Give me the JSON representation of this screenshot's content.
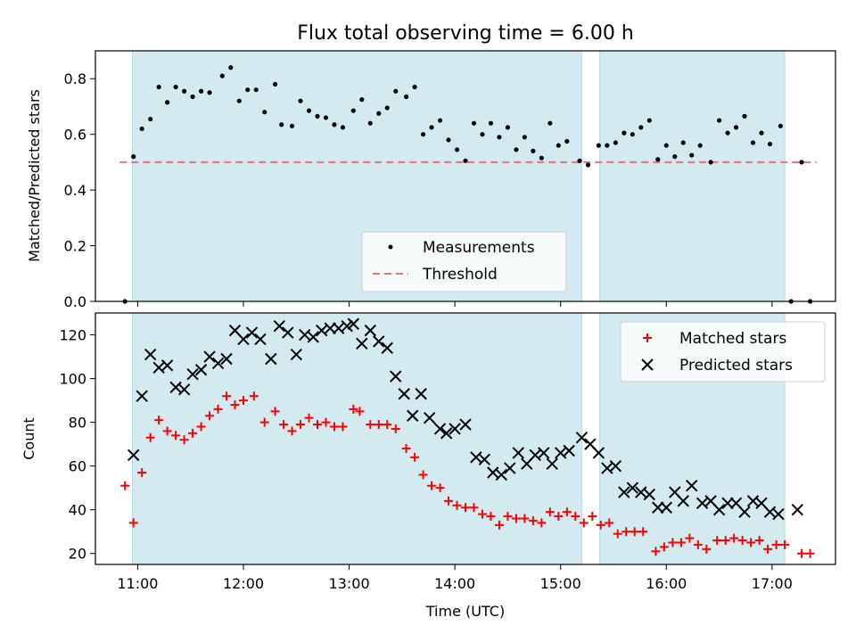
{
  "chart_data": {
    "title": "Flux total observing time = 6.00 h",
    "xlabel": "Time (UTC)",
    "x_ticks": [
      "11:00",
      "12:00",
      "13:00",
      "14:00",
      "15:00",
      "16:00",
      "17:00"
    ],
    "x_tick_hours": [
      11,
      12,
      13,
      14,
      15,
      16,
      17
    ],
    "xlim_hours": [
      10.6,
      17.6
    ],
    "observing_windows_hours": [
      [
        10.95,
        15.2
      ],
      [
        15.37,
        17.12
      ]
    ],
    "window_color": "#d4eaf1",
    "panels": [
      {
        "type": "scatter",
        "ylabel": "Matched/Predicted stars",
        "ylim": [
          0,
          0.9
        ],
        "yticks": [
          "0.0",
          "0.2",
          "0.4",
          "0.6",
          "0.8"
        ],
        "ytick_values": [
          0,
          0.2,
          0.4,
          0.6,
          0.8
        ],
        "threshold": 0.5,
        "threshold_color": "#f07070",
        "legend_position": "lower-right",
        "legend": [
          "Measurements",
          "Threshold"
        ],
        "series": [
          {
            "name": "Measurements",
            "color": "#000000",
            "points": [
              [
                10.88,
                0.0
              ],
              [
                10.96,
                0.52
              ],
              [
                11.04,
                0.62
              ],
              [
                11.12,
                0.655
              ],
              [
                11.2,
                0.77
              ],
              [
                11.28,
                0.715
              ],
              [
                11.36,
                0.77
              ],
              [
                11.44,
                0.755
              ],
              [
                11.52,
                0.735
              ],
              [
                11.6,
                0.755
              ],
              [
                11.68,
                0.75
              ],
              [
                11.8,
                0.81
              ],
              [
                11.88,
                0.84
              ],
              [
                11.96,
                0.72
              ],
              [
                12.04,
                0.76
              ],
              [
                12.12,
                0.76
              ],
              [
                12.2,
                0.68
              ],
              [
                12.3,
                0.78
              ],
              [
                12.36,
                0.635
              ],
              [
                12.46,
                0.63
              ],
              [
                12.54,
                0.72
              ],
              [
                12.62,
                0.685
              ],
              [
                12.7,
                0.665
              ],
              [
                12.78,
                0.66
              ],
              [
                12.86,
                0.635
              ],
              [
                12.94,
                0.625
              ],
              [
                13.04,
                0.685
              ],
              [
                13.12,
                0.725
              ],
              [
                13.2,
                0.64
              ],
              [
                13.28,
                0.675
              ],
              [
                13.36,
                0.695
              ],
              [
                13.44,
                0.755
              ],
              [
                13.54,
                0.735
              ],
              [
                13.62,
                0.77
              ],
              [
                13.7,
                0.6
              ],
              [
                13.78,
                0.625
              ],
              [
                13.86,
                0.65
              ],
              [
                13.94,
                0.58
              ],
              [
                14.02,
                0.545
              ],
              [
                14.1,
                0.505
              ],
              [
                14.18,
                0.64
              ],
              [
                14.26,
                0.6
              ],
              [
                14.34,
                0.64
              ],
              [
                14.42,
                0.59
              ],
              [
                14.5,
                0.625
              ],
              [
                14.58,
                0.545
              ],
              [
                14.66,
                0.59
              ],
              [
                14.74,
                0.54
              ],
              [
                14.82,
                0.515
              ],
              [
                14.9,
                0.64
              ],
              [
                14.98,
                0.56
              ],
              [
                15.06,
                0.575
              ],
              [
                15.18,
                0.505
              ],
              [
                15.26,
                0.49
              ],
              [
                15.36,
                0.56
              ],
              [
                15.44,
                0.56
              ],
              [
                15.52,
                0.57
              ],
              [
                15.6,
                0.605
              ],
              [
                15.68,
                0.6
              ],
              [
                15.76,
                0.625
              ],
              [
                15.84,
                0.65
              ],
              [
                15.92,
                0.51
              ],
              [
                16.0,
                0.56
              ],
              [
                16.08,
                0.52
              ],
              [
                16.16,
                0.57
              ],
              [
                16.24,
                0.525
              ],
              [
                16.32,
                0.56
              ],
              [
                16.42,
                0.5
              ],
              [
                16.5,
                0.65
              ],
              [
                16.58,
                0.605
              ],
              [
                16.66,
                0.625
              ],
              [
                16.74,
                0.665
              ],
              [
                16.82,
                0.57
              ],
              [
                16.9,
                0.605
              ],
              [
                16.98,
                0.565
              ],
              [
                17.08,
                0.63
              ],
              [
                17.18,
                0.0
              ],
              [
                17.28,
                0.5
              ],
              [
                17.36,
                0.0
              ]
            ]
          }
        ]
      },
      {
        "type": "scatter",
        "ylabel": "Count",
        "ylim": [
          15,
          130
        ],
        "yticks": [
          "20",
          "40",
          "60",
          "80",
          "100",
          "120"
        ],
        "ytick_values": [
          20,
          40,
          60,
          80,
          100,
          120
        ],
        "legend_position": "upper-right",
        "legend": [
          "Matched stars",
          "Predicted stars"
        ],
        "series": [
          {
            "name": "Matched stars",
            "marker": "+",
            "color": "#ff0000",
            "points": [
              [
                10.88,
                51
              ],
              [
                10.96,
                34
              ],
              [
                11.04,
                57
              ],
              [
                11.12,
                73
              ],
              [
                11.2,
                81
              ],
              [
                11.28,
                76
              ],
              [
                11.36,
                74
              ],
              [
                11.44,
                72
              ],
              [
                11.52,
                75
              ],
              [
                11.6,
                78
              ],
              [
                11.68,
                83
              ],
              [
                11.76,
                86
              ],
              [
                11.84,
                92
              ],
              [
                11.92,
                88
              ],
              [
                12.0,
                90
              ],
              [
                12.1,
                92
              ],
              [
                12.2,
                80
              ],
              [
                12.3,
                85
              ],
              [
                12.38,
                79
              ],
              [
                12.46,
                76
              ],
              [
                12.54,
                79
              ],
              [
                12.62,
                82
              ],
              [
                12.7,
                79
              ],
              [
                12.78,
                80
              ],
              [
                12.86,
                78
              ],
              [
                12.94,
                78
              ],
              [
                13.04,
                86
              ],
              [
                13.1,
                85
              ],
              [
                13.2,
                79
              ],
              [
                13.28,
                79
              ],
              [
                13.36,
                79
              ],
              [
                13.44,
                77
              ],
              [
                13.54,
                68
              ],
              [
                13.62,
                64
              ],
              [
                13.7,
                56
              ],
              [
                13.78,
                51
              ],
              [
                13.86,
                50
              ],
              [
                13.94,
                44
              ],
              [
                14.02,
                42
              ],
              [
                14.1,
                41
              ],
              [
                14.18,
                41
              ],
              [
                14.26,
                38
              ],
              [
                14.34,
                37
              ],
              [
                14.42,
                33
              ],
              [
                14.5,
                37
              ],
              [
                14.58,
                36
              ],
              [
                14.66,
                36
              ],
              [
                14.74,
                35
              ],
              [
                14.82,
                34
              ],
              [
                14.9,
                39
              ],
              [
                14.98,
                37
              ],
              [
                15.06,
                39
              ],
              [
                15.14,
                37
              ],
              [
                15.22,
                34
              ],
              [
                15.3,
                37
              ],
              [
                15.38,
                33
              ],
              [
                15.46,
                34
              ],
              [
                15.54,
                29
              ],
              [
                15.62,
                30
              ],
              [
                15.7,
                30
              ],
              [
                15.78,
                30
              ],
              [
                15.9,
                21
              ],
              [
                15.98,
                23
              ],
              [
                16.06,
                25
              ],
              [
                16.14,
                25
              ],
              [
                16.22,
                27
              ],
              [
                16.3,
                24
              ],
              [
                16.38,
                22
              ],
              [
                16.48,
                26
              ],
              [
                16.56,
                26
              ],
              [
                16.64,
                27
              ],
              [
                16.72,
                26
              ],
              [
                16.8,
                25
              ],
              [
                16.88,
                26
              ],
              [
                16.96,
                22
              ],
              [
                17.04,
                24
              ],
              [
                17.12,
                24
              ],
              [
                17.28,
                20
              ],
              [
                17.36,
                20
              ]
            ]
          },
          {
            "name": "Predicted stars",
            "marker": "x",
            "color": "#000000",
            "points": [
              [
                10.96,
                65
              ],
              [
                11.04,
                92
              ],
              [
                11.12,
                111
              ],
              [
                11.2,
                105
              ],
              [
                11.28,
                106
              ],
              [
                11.36,
                96
              ],
              [
                11.44,
                95
              ],
              [
                11.52,
                102
              ],
              [
                11.6,
                104
              ],
              [
                11.68,
                110
              ],
              [
                11.76,
                107
              ],
              [
                11.84,
                109
              ],
              [
                11.92,
                122
              ],
              [
                12.0,
                118
              ],
              [
                12.08,
                121
              ],
              [
                12.16,
                118
              ],
              [
                12.26,
                109
              ],
              [
                12.34,
                124
              ],
              [
                12.42,
                121
              ],
              [
                12.5,
                111
              ],
              [
                12.58,
                120
              ],
              [
                12.66,
                119
              ],
              [
                12.74,
                122
              ],
              [
                12.82,
                123
              ],
              [
                12.9,
                123
              ],
              [
                12.98,
                124
              ],
              [
                13.04,
                125
              ],
              [
                13.12,
                116
              ],
              [
                13.2,
                122
              ],
              [
                13.28,
                117
              ],
              [
                13.36,
                114
              ],
              [
                13.44,
                101
              ],
              [
                13.52,
                93
              ],
              [
                13.6,
                83
              ],
              [
                13.68,
                93
              ],
              [
                13.76,
                82
              ],
              [
                13.86,
                77
              ],
              [
                13.92,
                75
              ],
              [
                14.0,
                77
              ],
              [
                14.1,
                79
              ],
              [
                14.2,
                64
              ],
              [
                14.28,
                63
              ],
              [
                14.36,
                57
              ],
              [
                14.44,
                56
              ],
              [
                14.52,
                59
              ],
              [
                14.6,
                66
              ],
              [
                14.68,
                61
              ],
              [
                14.76,
                65
              ],
              [
                14.84,
                66
              ],
              [
                14.92,
                61
              ],
              [
                15.0,
                66
              ],
              [
                15.08,
                67
              ],
              [
                15.2,
                73
              ],
              [
                15.28,
                70
              ],
              [
                15.36,
                66
              ],
              [
                15.44,
                59
              ],
              [
                15.52,
                60
              ],
              [
                15.6,
                48
              ],
              [
                15.68,
                50
              ],
              [
                15.76,
                48
              ],
              [
                15.84,
                47
              ],
              [
                15.92,
                41
              ],
              [
                16.0,
                41
              ],
              [
                16.08,
                48
              ],
              [
                16.16,
                44
              ],
              [
                16.24,
                51
              ],
              [
                16.34,
                43
              ],
              [
                16.42,
                44
              ],
              [
                16.5,
                40
              ],
              [
                16.58,
                43
              ],
              [
                16.66,
                43
              ],
              [
                16.74,
                39
              ],
              [
                16.82,
                44
              ],
              [
                16.9,
                43
              ],
              [
                16.98,
                39
              ],
              [
                17.06,
                38
              ],
              [
                17.24,
                40
              ]
            ]
          }
        ]
      }
    ]
  }
}
